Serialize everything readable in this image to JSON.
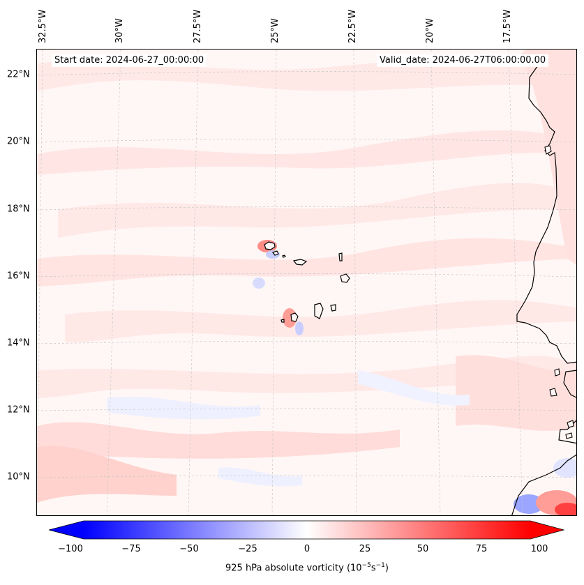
{
  "map": {
    "start_date_label": "Start date: 2024-06-27_00:00:00",
    "valid_date_label": "Valid_date: 2024-06-27T06:00:00.00",
    "lon_labels": [
      "32.5°W",
      "30°W",
      "27.5°W",
      "25°W",
      "22.5°W",
      "20°W",
      "17.5°W"
    ],
    "lat_labels": [
      "22°N",
      "20°N",
      "18°N",
      "16°N",
      "14°N",
      "12°N",
      "10°N"
    ],
    "field_colors": {
      "background": "#fff7f6",
      "light_red": "#ffe4e2",
      "mid_red": "#ffc8c4",
      "strong_red": "#ff5050",
      "light_blue": "#e6e9ff",
      "mid_blue": "#b8c0ff",
      "coast": "#000000",
      "grid": "#c8c8c8"
    }
  },
  "colorbar": {
    "tick_labels": [
      "−100",
      "−75",
      "−50",
      "−25",
      "0",
      "25",
      "50",
      "75",
      "100"
    ],
    "range": [
      -100,
      100
    ],
    "colors": {
      "min": "#0000ff",
      "mid": "#ffffff",
      "max": "#ff0000"
    },
    "label_prefix": "925 hPa absolute vorticity (10",
    "label_exp1": "−5",
    "label_mid": "s",
    "label_exp2": "−1",
    "label_suffix": ")"
  }
}
